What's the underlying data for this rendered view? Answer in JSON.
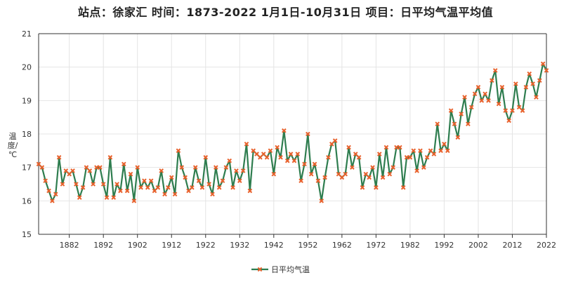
{
  "chart_data": {
    "type": "line",
    "title": "站点：徐家汇 时间：1873-2022  1月1日-10月31日 项目：日平均气温平均值",
    "ylabel": "温度/℃",
    "xlabel": "",
    "ylim": [
      15,
      21
    ],
    "xlim": [
      1873,
      2022
    ],
    "yticks": [
      "15",
      "16",
      "17",
      "18",
      "19",
      "20",
      "21"
    ],
    "xticks": [
      "1882",
      "1892",
      "1902",
      "1912",
      "1922",
      "1932",
      "1942",
      "1952",
      "1962",
      "1972",
      "1982",
      "1992",
      "2002",
      "2012",
      "2022"
    ],
    "grid": true,
    "legend_position": "bottom-center",
    "colors": {
      "line": "#2e7d4f",
      "marker": "#e8612c",
      "axis": "#333333",
      "grid": "#e4e4e4"
    },
    "series": [
      {
        "name": "日平均气温",
        "x_start": 1873,
        "values": [
          17.1,
          17.0,
          16.6,
          16.3,
          16.0,
          16.2,
          17.3,
          16.5,
          16.9,
          16.8,
          16.9,
          16.5,
          16.1,
          16.4,
          17.0,
          16.9,
          16.5,
          17.0,
          17.0,
          16.5,
          16.1,
          17.3,
          16.1,
          16.5,
          16.3,
          17.1,
          16.3,
          16.8,
          16.0,
          17.0,
          16.4,
          16.6,
          16.4,
          16.6,
          16.3,
          16.4,
          16.9,
          16.2,
          16.4,
          16.7,
          16.2,
          17.5,
          17.0,
          16.7,
          16.3,
          16.4,
          17.0,
          16.6,
          16.4,
          17.3,
          16.5,
          16.2,
          17.0,
          16.4,
          16.6,
          17.0,
          17.2,
          16.4,
          16.9,
          16.6,
          16.9,
          17.7,
          16.3,
          17.5,
          17.4,
          17.3,
          17.4,
          17.3,
          17.5,
          16.8,
          17.6,
          17.3,
          18.1,
          17.2,
          17.4,
          17.2,
          17.4,
          16.6,
          17.1,
          18.0,
          16.8,
          17.1,
          16.6,
          16.0,
          16.7,
          17.3,
          17.7,
          17.8,
          16.8,
          16.7,
          16.8,
          17.6,
          17.0,
          17.4,
          17.3,
          16.4,
          16.8,
          16.7,
          17.0,
          16.4,
          17.4,
          16.7,
          17.6,
          16.8,
          17.0,
          17.6,
          17.6,
          16.4,
          17.3,
          17.3,
          17.5,
          16.9,
          17.5,
          17.0,
          17.3,
          17.5,
          17.4,
          18.3,
          17.5,
          17.7,
          17.5,
          18.7,
          18.3,
          17.9,
          18.6,
          19.1,
          18.3,
          18.8,
          19.2,
          19.4,
          19.0,
          19.2,
          19.0,
          19.6,
          19.9,
          18.9,
          19.4,
          18.7,
          18.4,
          18.7,
          19.5,
          18.8,
          18.7,
          19.4,
          19.8,
          19.5,
          19.1,
          19.6,
          20.1,
          19.9
        ]
      }
    ]
  }
}
